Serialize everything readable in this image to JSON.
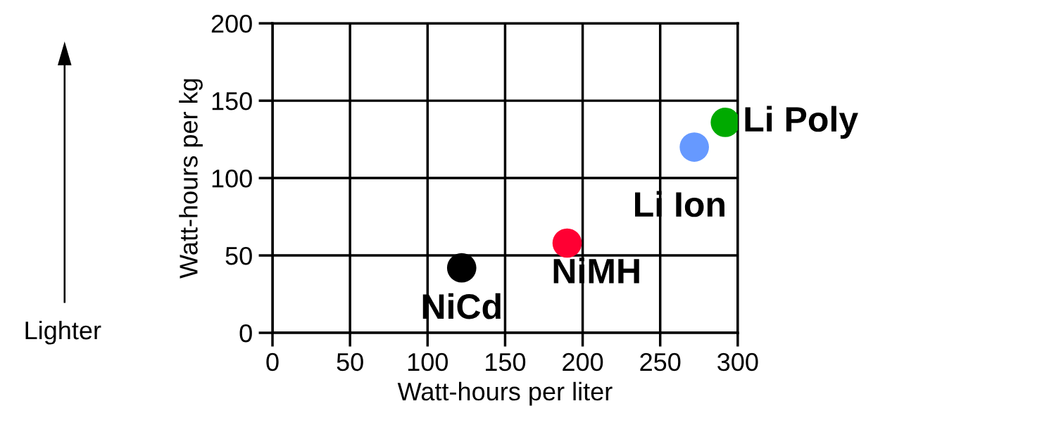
{
  "chart_data": {
    "type": "scatter",
    "xlabel": "Watt-hours per liter",
    "ylabel": "Watt-hours per kg",
    "xlim": [
      0,
      300
    ],
    "xticks": [
      0,
      50,
      100,
      150,
      200,
      250,
      300
    ],
    "ylim": [
      0,
      200
    ],
    "yticks": [
      0,
      50,
      100,
      150,
      200
    ],
    "grid": true,
    "marker": "circle",
    "series": [
      {
        "name": "NiCd",
        "color": "#000000",
        "x": [
          122
        ],
        "values": [
          42
        ]
      },
      {
        "name": "NiMH",
        "color": "#ff0033",
        "x": [
          190
        ],
        "values": [
          58
        ]
      },
      {
        "name": "Li Ion",
        "color": "#6699ff",
        "x": [
          272
        ],
        "values": [
          120
        ]
      },
      {
        "name": "Li Poly",
        "color": "#00aa00",
        "x": [
          292
        ],
        "values": [
          136
        ]
      }
    ],
    "annotations": [
      "Lighter"
    ]
  }
}
